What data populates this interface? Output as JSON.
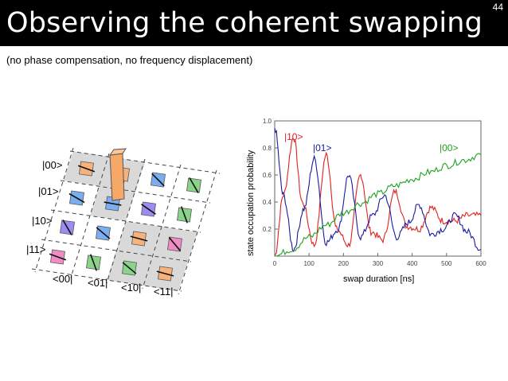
{
  "slide": {
    "title": "Observing the coherent swapping",
    "number": "44",
    "subtitle": "(no phase compensation, no frequency displacement)"
  },
  "matrix": {
    "row_labels": [
      "|00>",
      "|01>",
      "|10>",
      "|11>"
    ],
    "col_labels": [
      "<00|",
      "<01|",
      "<10|",
      "<11|"
    ],
    "tile_colors": [
      "#f6b27a",
      "#7aaef0",
      "#9b8cf2",
      "#f08cc4",
      "#8bd28b"
    ],
    "highlight_color": "#d9d9d9"
  },
  "chart_data": {
    "type": "line",
    "xlabel": "swap duration [ns]",
    "ylabel": "state occupation probability",
    "xlim": [
      0,
      600
    ],
    "ylim": [
      0,
      1.0
    ],
    "xticks": [
      0,
      100,
      200,
      300,
      400,
      500,
      600
    ],
    "yticks": [
      0.2,
      0.4,
      0.6,
      0.8,
      1.0
    ],
    "series": [
      {
        "name": "|10>",
        "color": "#e02020",
        "x": [
          0,
          25,
          55,
          80,
          115,
          150,
          180,
          215,
          250,
          280,
          315,
          350,
          385,
          420,
          455,
          490,
          525,
          560,
          600
        ],
        "y": [
          0.0,
          0.45,
          0.88,
          0.4,
          0.08,
          0.75,
          0.2,
          0.08,
          0.6,
          0.18,
          0.12,
          0.48,
          0.22,
          0.2,
          0.36,
          0.26,
          0.26,
          0.3,
          0.3
        ]
      },
      {
        "name": "|01>",
        "color": "#1a1aa0",
        "x": [
          0,
          25,
          55,
          85,
          115,
          150,
          185,
          215,
          250,
          285,
          320,
          355,
          390,
          420,
          455,
          490,
          525,
          560,
          600
        ],
        "y": [
          0.95,
          0.45,
          0.05,
          0.35,
          0.72,
          0.1,
          0.2,
          0.6,
          0.14,
          0.3,
          0.45,
          0.14,
          0.25,
          0.38,
          0.16,
          0.2,
          0.3,
          0.18,
          0.05
        ]
      },
      {
        "name": "|00>",
        "color": "#20a020",
        "x": [
          0,
          50,
          100,
          150,
          200,
          250,
          300,
          350,
          400,
          450,
          500,
          550,
          600
        ],
        "y": [
          0.0,
          0.05,
          0.14,
          0.23,
          0.32,
          0.39,
          0.46,
          0.52,
          0.57,
          0.62,
          0.67,
          0.71,
          0.75
        ]
      }
    ]
  }
}
